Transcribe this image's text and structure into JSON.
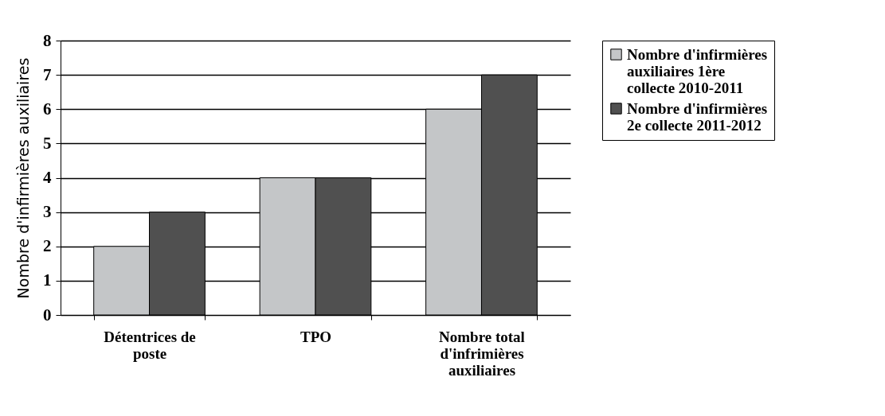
{
  "chart_data": {
    "type": "bar",
    "ylabel": "Nombre d'infirmières auxiliaires",
    "categories": [
      "Détentrices de poste",
      "TPO",
      "Nombre total d'infrimières auxiliaires"
    ],
    "series": [
      {
        "name": "Nombre d'infirmières auxiliaires 1ère collecte 2010-2011",
        "color": "#c4c6c8",
        "values": [
          2,
          4,
          6
        ]
      },
      {
        "name": "Nombre d'infirmières 2e collecte 2011-2012",
        "color": "#505050",
        "values": [
          3,
          4,
          7
        ]
      }
    ],
    "ylim": [
      0,
      8
    ],
    "yticks": [
      0,
      1,
      2,
      3,
      4,
      5,
      6,
      7,
      8
    ],
    "grid": "y",
    "legend": "right"
  }
}
